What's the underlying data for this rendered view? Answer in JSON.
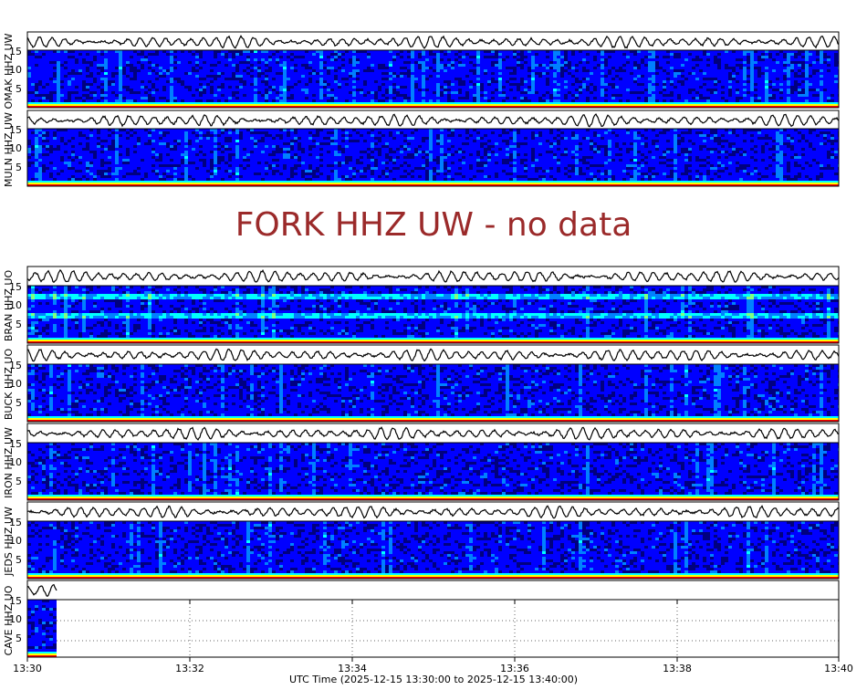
{
  "chart_data": {
    "type": "heatmap",
    "description_kind": "seismogram waveforms with spectrograms",
    "x_axis": {
      "label": "UTC Time (2025-12-15 13:30:00 to 2025-12-15 13:40:00)",
      "range": [
        "13:30",
        "13:40"
      ],
      "ticks": [
        "13:30",
        "13:32",
        "13:34",
        "13:36",
        "13:38",
        "13:40"
      ]
    },
    "y_axis": {
      "range": [
        0,
        16
      ],
      "ticks": [
        "5",
        "10",
        "15"
      ],
      "unit": "Hz"
    },
    "colormap": [
      "#00007f",
      "#0000ff",
      "#0080ff",
      "#00ffff",
      "#80ff80",
      "#ffff00",
      "#ff8000",
      "#ff0000"
    ],
    "stations": [
      {
        "name": "OMAK HHZ UW",
        "data_fraction": 1.0
      },
      {
        "name": "MULN HHZ UW",
        "data_fraction": 1.0
      },
      {
        "name": "FORK HHZ UW",
        "no_data": true,
        "message": "FORK HHZ UW - no data"
      },
      {
        "name": "BRAN HHZ UO",
        "data_fraction": 1.0
      },
      {
        "name": "BUCK HHZ UO",
        "data_fraction": 1.0
      },
      {
        "name": "IRON HHZ UW",
        "data_fraction": 1.0
      },
      {
        "name": "JEDS HHZ UW",
        "data_fraction": 1.0
      },
      {
        "name": "CAVE HHZ UO",
        "data_fraction": 0.036
      }
    ]
  }
}
